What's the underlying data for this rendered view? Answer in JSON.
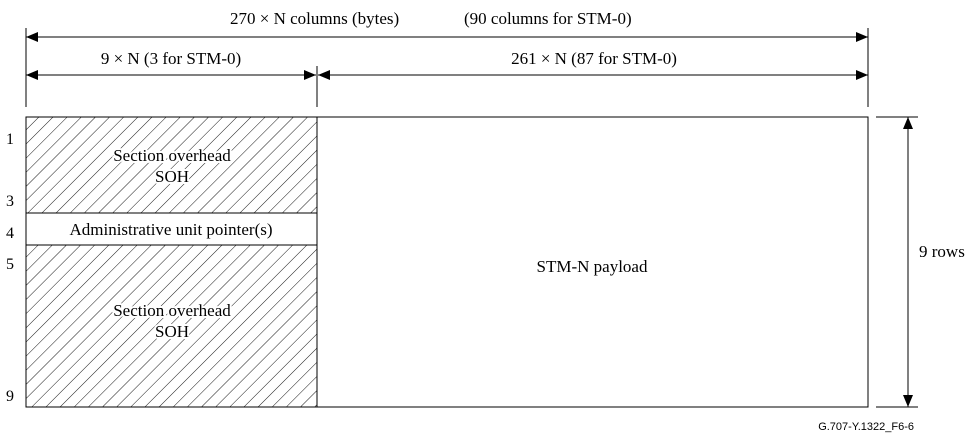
{
  "dimensions": {
    "total_columns": "270 × N columns (bytes)",
    "total_columns_stm0": "(90 columns for STM-0)",
    "overhead_columns": "9 × N (3 for STM-0)",
    "payload_columns": "261 × N (87 for STM-0)",
    "rows": "9 rows"
  },
  "blocks": {
    "soh_top": {
      "line1": "Section overhead",
      "line2": "SOH"
    },
    "au_pointer": "Administrative unit pointer(s)",
    "soh_bottom": {
      "line1": "Section overhead",
      "line2": "SOH"
    },
    "payload": "STM-N payload"
  },
  "row_numbers": {
    "r1": "1",
    "r3": "3",
    "r4": "4",
    "r5": "5",
    "r9": "9"
  },
  "figure_id": "G.707-Y.1322_F6-6"
}
